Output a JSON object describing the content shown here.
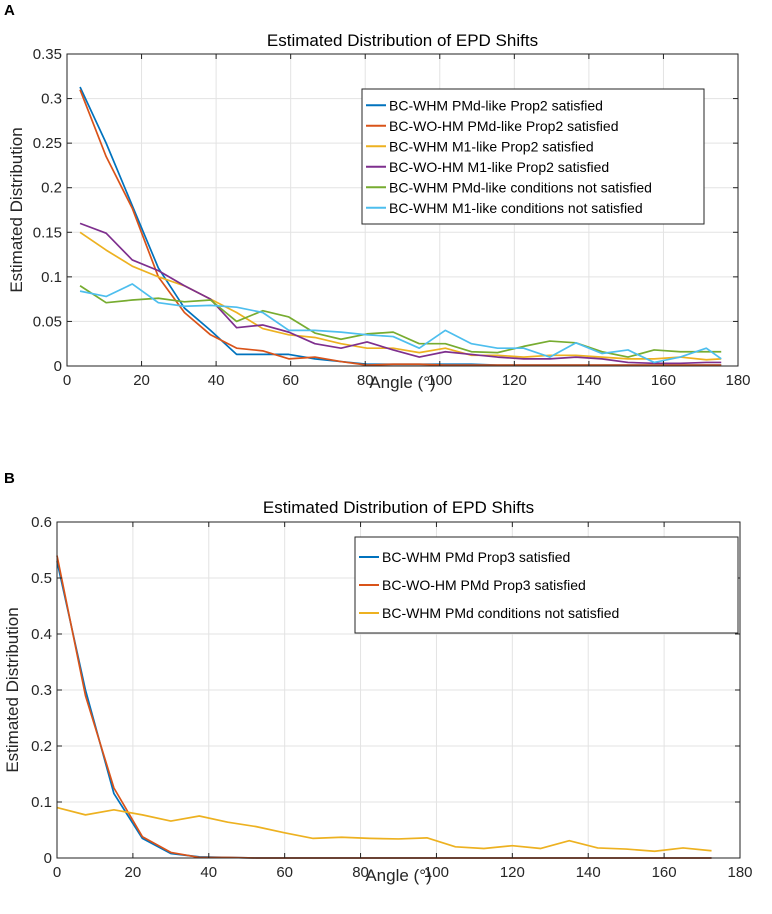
{
  "panels": {
    "a": {
      "letter": "A"
    },
    "b": {
      "letter": "B"
    }
  },
  "colors": {
    "blue": "#0072BD",
    "red": "#D95319",
    "yellow": "#EDB120",
    "purple": "#7E2F8E",
    "green": "#77AC30",
    "cyan": "#4DBEEE"
  },
  "chart_data": [
    {
      "type": "line",
      "title": "Estimated Distribution of EPD Shifts",
      "xlabel": "Angle (°)",
      "ylabel": "Estimated Distribution",
      "xlim": [
        0,
        180
      ],
      "ylim": [
        0,
        0.35
      ],
      "xticks": [
        0,
        20,
        40,
        60,
        80,
        100,
        120,
        140,
        160,
        180
      ],
      "yticks": [
        0,
        0.05,
        0.1,
        0.15,
        0.2,
        0.25,
        0.3,
        0.35
      ],
      "ytick_labels": [
        "0",
        "0.05",
        "0.1",
        "0.15",
        "0.2",
        "0.25",
        "0.3",
        "0.35"
      ],
      "grid": true,
      "legend_position": "top-right",
      "x": [
        3.5,
        10.5,
        17.5,
        24.5,
        31.5,
        38.5,
        45.5,
        52.5,
        59.5,
        66.5,
        73.5,
        80.5,
        87.5,
        94.5,
        101.5,
        108.5,
        115.5,
        122.5,
        129.5,
        136.5,
        143.5,
        150.5,
        157.5,
        164.5,
        171.5,
        175.5
      ],
      "series": [
        {
          "name": "BC-WHM PMd-like Prop2 satisfied",
          "color": "#0072BD",
          "values": [
            0.313,
            0.25,
            0.18,
            0.11,
            0.065,
            0.04,
            0.013,
            0.013,
            0.013,
            0.008,
            0.005,
            0.002,
            0.002,
            0.002,
            0.002,
            0.002,
            0.001,
            0.001,
            0.001,
            0.001,
            0.001,
            0.001,
            0.001,
            0.001,
            0.001,
            0.001
          ]
        },
        {
          "name": "BC-WO-HM PMd-like Prop2 satisfied",
          "color": "#D95319",
          "values": [
            0.31,
            0.235,
            0.177,
            0.1,
            0.06,
            0.035,
            0.02,
            0.017,
            0.008,
            0.01,
            0.005,
            0.001,
            0.002,
            0.002,
            0.001,
            0.001,
            0.001,
            0.001,
            0.001,
            0.001,
            0.001,
            0.001,
            0.001,
            0.001,
            0.001,
            0.001
          ]
        },
        {
          "name": "BC-WHM M1-like Prop2 satisfied",
          "color": "#EDB120",
          "values": [
            0.15,
            0.13,
            0.112,
            0.1,
            0.09,
            0.075,
            0.06,
            0.042,
            0.035,
            0.032,
            0.025,
            0.02,
            0.02,
            0.015,
            0.02,
            0.012,
            0.012,
            0.01,
            0.012,
            0.012,
            0.01,
            0.008,
            0.008,
            0.01,
            0.007,
            0.008
          ]
        },
        {
          "name": "BC-WO-HM M1-like Prop2 satisfied",
          "color": "#7E2F8E",
          "values": [
            0.16,
            0.149,
            0.119,
            0.107,
            0.09,
            0.075,
            0.043,
            0.046,
            0.038,
            0.025,
            0.02,
            0.027,
            0.018,
            0.01,
            0.016,
            0.013,
            0.01,
            0.008,
            0.008,
            0.01,
            0.008,
            0.004,
            0.003,
            0.003,
            0.004,
            0.004
          ]
        },
        {
          "name": "BC-WHM PMd-like conditions not satisfied",
          "color": "#77AC30",
          "values": [
            0.09,
            0.071,
            0.074,
            0.076,
            0.072,
            0.074,
            0.05,
            0.062,
            0.055,
            0.037,
            0.03,
            0.036,
            0.038,
            0.025,
            0.025,
            0.016,
            0.015,
            0.022,
            0.028,
            0.026,
            0.016,
            0.01,
            0.018,
            0.016,
            0.016,
            0.016
          ]
        },
        {
          "name": "BC-WHM M1-like conditions not satisfied",
          "color": "#4DBEEE",
          "values": [
            0.084,
            0.078,
            0.092,
            0.071,
            0.067,
            0.068,
            0.066,
            0.06,
            0.04,
            0.04,
            0.038,
            0.035,
            0.033,
            0.02,
            0.04,
            0.025,
            0.02,
            0.02,
            0.01,
            0.026,
            0.014,
            0.018,
            0.004,
            0.01,
            0.02,
            0.008
          ]
        }
      ]
    },
    {
      "type": "line",
      "title": "Estimated Distribution of EPD Shifts",
      "xlabel": "Angle (°)",
      "ylabel": "Estimated Distribution",
      "xlim": [
        0,
        180
      ],
      "ylim": [
        0,
        0.6
      ],
      "xticks": [
        0,
        20,
        40,
        60,
        80,
        100,
        120,
        140,
        160,
        180
      ],
      "yticks": [
        0,
        0.1,
        0.2,
        0.3,
        0.4,
        0.5,
        0.6
      ],
      "ytick_labels": [
        "0",
        "0.1",
        "0.2",
        "0.3",
        "0.4",
        "0.5",
        "0.6"
      ],
      "grid": true,
      "legend_position": "top-right",
      "x": [
        0,
        7.5,
        15,
        22.5,
        30,
        37.5,
        45,
        52.5,
        60,
        67.5,
        75,
        82.5,
        90,
        97.5,
        105,
        112.5,
        120,
        127.5,
        135,
        142.5,
        150,
        157.5,
        165,
        172.5
      ],
      "series": [
        {
          "name": "BC-WHM PMd Prop3 satisfied",
          "color": "#0072BD",
          "values": [
            0.53,
            0.3,
            0.115,
            0.035,
            0.008,
            0.002,
            0.001,
            0,
            0,
            0,
            0,
            0,
            0,
            0,
            0,
            0,
            0,
            0,
            0,
            0,
            0,
            0,
            0,
            0
          ]
        },
        {
          "name": "BC-WO-HM PMd Prop3 satisfied",
          "color": "#D95319",
          "values": [
            0.54,
            0.29,
            0.125,
            0.038,
            0.01,
            0.001,
            0.001,
            0,
            0,
            0,
            0,
            0,
            0,
            0,
            0,
            0,
            0,
            0,
            0,
            0,
            0,
            0,
            0,
            0
          ]
        },
        {
          "name": "BC-WHM PMd conditions not satisfied",
          "color": "#EDB120",
          "values": [
            0.09,
            0.077,
            0.086,
            0.077,
            0.066,
            0.075,
            0.064,
            0.056,
            0.045,
            0.035,
            0.037,
            0.035,
            0.034,
            0.036,
            0.02,
            0.017,
            0.022,
            0.017,
            0.031,
            0.018,
            0.016,
            0.012,
            0.018,
            0.013
          ]
        }
      ]
    }
  ]
}
